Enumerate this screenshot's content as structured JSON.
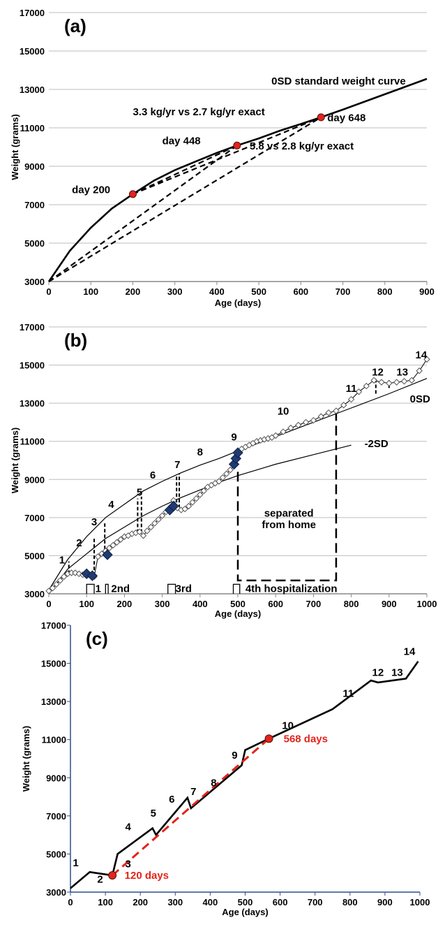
{
  "chart_data": [
    {
      "panel_label": "(a)",
      "type": "line",
      "xlabel": "Age (days)",
      "ylabel": "Weight (grams)",
      "xlim": [
        0,
        900
      ],
      "ylim": [
        3000,
        17000
      ],
      "xticks": [
        0,
        100,
        200,
        300,
        400,
        500,
        600,
        700,
        800,
        900
      ],
      "yticks": [
        3000,
        5000,
        7000,
        9000,
        11000,
        13000,
        15000,
        17000
      ],
      "grid": "horizontal",
      "series": [
        {
          "name": "0SD standard weight curve",
          "style": "solid",
          "x": [
            0,
            50,
            100,
            150,
            200,
            250,
            300,
            350,
            400,
            448,
            500,
            550,
            600,
            648,
            700,
            750,
            800,
            850,
            900
          ],
          "y": [
            3000,
            4600,
            5800,
            6800,
            7550,
            8250,
            8800,
            9250,
            9700,
            10080,
            10450,
            10850,
            11200,
            11550,
            11950,
            12350,
            12750,
            13150,
            13550
          ]
        },
        {
          "style": "dashed",
          "x": [
            0,
            448
          ],
          "y": [
            3000,
            10080
          ]
        },
        {
          "style": "dashed",
          "x": [
            0,
            648
          ],
          "y": [
            3000,
            11550
          ]
        },
        {
          "style": "dashed",
          "x": [
            200,
            448
          ],
          "y": [
            7550,
            10080
          ]
        },
        {
          "style": "dashed",
          "x": [
            200,
            648
          ],
          "y": [
            7550,
            11550
          ]
        }
      ],
      "points": [
        {
          "x": 200,
          "y": 7550,
          "color": "#e3241b"
        },
        {
          "x": 448,
          "y": 10080,
          "color": "#e3241b"
        },
        {
          "x": 648,
          "y": 11550,
          "color": "#e3241b"
        }
      ],
      "annotations": [
        {
          "text": "0SD standard weight curve",
          "x": 530,
          "y": 13250
        },
        {
          "text": "3.3 kg/yr vs 2.7 kg/yr exact",
          "x": 200,
          "y": 11650
        },
        {
          "text": "day 648",
          "x": 663,
          "y": 11350
        },
        {
          "text": "day 448",
          "x": 270,
          "y": 10150
        },
        {
          "text": "5.8 vs 2.8 kg/yr exact",
          "x": 478,
          "y": 9880
        },
        {
          "text": "day 200",
          "x": 55,
          "y": 7600
        }
      ]
    },
    {
      "panel_label": "(b)",
      "type": "scatter",
      "xlabel": "Age (days)",
      "ylabel": "Weight (grams)",
      "xlim": [
        0,
        1000
      ],
      "ylim": [
        3000,
        17000
      ],
      "xticks": [
        0,
        100,
        200,
        300,
        400,
        500,
        600,
        700,
        800,
        900,
        1000
      ],
      "yticks": [
        3000,
        5000,
        7000,
        9000,
        11000,
        13000,
        15000,
        17000
      ],
      "grid": "horizontal",
      "curves": [
        {
          "name": "0SD",
          "x": [
            0,
            50,
            100,
            150,
            200,
            250,
            300,
            350,
            400,
            450,
            500,
            600,
            700,
            800,
            900,
            1000
          ],
          "y": [
            3200,
            4800,
            6000,
            7000,
            7700,
            8400,
            8900,
            9350,
            9750,
            10100,
            10500,
            11250,
            12000,
            12750,
            13500,
            14300
          ]
        },
        {
          "name": "-2SD",
          "x": [
            0,
            50,
            100,
            150,
            200,
            250,
            300,
            350,
            400,
            450,
            500,
            600,
            700,
            800
          ],
          "y": [
            3000,
            4300,
            5100,
            5900,
            6500,
            7100,
            7600,
            8050,
            8450,
            8850,
            9200,
            9800,
            10300,
            10800
          ]
        }
      ],
      "weights": {
        "x": [
          0,
          10,
          20,
          30,
          40,
          50,
          60,
          70,
          80,
          90,
          100,
          110,
          120,
          130,
          140,
          150,
          160,
          170,
          180,
          190,
          200,
          210,
          220,
          230,
          240,
          250,
          260,
          270,
          280,
          290,
          300,
          310,
          320,
          330,
          340,
          350,
          360,
          370,
          380,
          390,
          400,
          410,
          420,
          430,
          440,
          450,
          460,
          470,
          480,
          490,
          500,
          510,
          520,
          530,
          540,
          550,
          560,
          570,
          580,
          590,
          600,
          620,
          640,
          660,
          680,
          700,
          720,
          740,
          760,
          780,
          800,
          820,
          840,
          860,
          880,
          900,
          920,
          940,
          960,
          980,
          1000
        ],
        "y": [
          3150,
          3300,
          3500,
          3700,
          3900,
          4050,
          4100,
          4100,
          4050,
          4000,
          4000,
          3950,
          3900,
          4950,
          5100,
          5250,
          5400,
          5550,
          5700,
          5850,
          6000,
          6050,
          6150,
          6200,
          6250,
          6050,
          6300,
          6500,
          6700,
          6900,
          7100,
          7300,
          7500,
          7900,
          7500,
          7400,
          7450,
          7600,
          7800,
          8000,
          8200,
          8400,
          8600,
          8700,
          8800,
          8900,
          9100,
          9300,
          9500,
          9700,
          10500,
          10600,
          10700,
          10800,
          10900,
          11000,
          11050,
          11100,
          11150,
          11200,
          11300,
          11500,
          11700,
          11850,
          12000,
          12100,
          12300,
          12500,
          12600,
          12900,
          13200,
          13600,
          13900,
          14200,
          14100,
          14050,
          14100,
          14150,
          14200,
          14700,
          15300
        ]
      },
      "hospital_diamonds": [
        {
          "x": 100,
          "y": 4050
        },
        {
          "x": 115,
          "y": 3950
        },
        {
          "x": 155,
          "y": 5050
        },
        {
          "x": 320,
          "y": 7400
        },
        {
          "x": 330,
          "y": 7600
        },
        {
          "x": 490,
          "y": 9800
        },
        {
          "x": 495,
          "y": 10100
        },
        {
          "x": 500,
          "y": 10400
        }
      ],
      "deficits": [
        {
          "x": 53,
          "y1": 4050,
          "y2": 4700
        },
        {
          "x": 120,
          "y1": 3950,
          "y2": 5900
        },
        {
          "x": 148,
          "y1": 5050,
          "y2": 6700
        },
        {
          "x": 235,
          "y1": 6200,
          "y2": 8000
        },
        {
          "x": 245,
          "y1": 6200,
          "y2": 8100
        },
        {
          "x": 338,
          "y1": 7500,
          "y2": 9200
        },
        {
          "x": 345,
          "y1": 7500,
          "y2": 9300
        },
        {
          "x": 865,
          "y1": 13500,
          "y2": 14300
        },
        {
          "x": 900,
          "y1": 13800,
          "y2": 14200
        }
      ],
      "number_labels": [
        {
          "text": "1",
          "x": 35,
          "y": 4600
        },
        {
          "text": "2",
          "x": 80,
          "y": 5500
        },
        {
          "text": "3",
          "x": 120,
          "y": 6600
        },
        {
          "text": "4",
          "x": 165,
          "y": 7500
        },
        {
          "text": "5",
          "x": 240,
          "y": 8150
        },
        {
          "text": "6",
          "x": 275,
          "y": 9050
        },
        {
          "text": "7",
          "x": 340,
          "y": 9600
        },
        {
          "text": "8",
          "x": 400,
          "y": 10250
        },
        {
          "text": "9",
          "x": 490,
          "y": 11050
        },
        {
          "text": "10",
          "x": 620,
          "y": 12400
        },
        {
          "text": "11",
          "x": 800,
          "y": 13600
        },
        {
          "text": "12",
          "x": 870,
          "y": 14450
        },
        {
          "text": "13",
          "x": 935,
          "y": 14450
        },
        {
          "text": "14",
          "x": 985,
          "y": 15350
        }
      ],
      "annotations": [
        {
          "text": "0SD",
          "x": 955,
          "y": 13050
        },
        {
          "text": "-2SD",
          "x": 835,
          "y": 10700
        },
        {
          "text": "separated",
          "x": 635,
          "y": 7050
        },
        {
          "text": "from home",
          "x": 635,
          "y": 6450
        },
        {
          "text": "1",
          "x": 123,
          "y": 3100
        },
        {
          "text": "2nd",
          "x": 165,
          "y": 3100
        },
        {
          "text": "3rd",
          "x": 335,
          "y": 3100
        },
        {
          "text": "4th hospitalization",
          "x": 520,
          "y": 3100
        }
      ],
      "separated_box": {
        "x": [
          500,
          760
        ],
        "y": [
          3700,
          12500
        ]
      },
      "hospitalizations": [
        {
          "x": [
            100,
            120
          ]
        },
        {
          "x": [
            150,
            157
          ]
        },
        {
          "x": [
            315,
            335
          ]
        },
        {
          "x": [
            488,
            505
          ]
        }
      ]
    },
    {
      "panel_label": "(c)",
      "type": "line",
      "xlabel": "Age (days)",
      "ylabel": "Weight (grams)",
      "xlim": [
        0,
        1000
      ],
      "ylim": [
        3000,
        17000
      ],
      "xticks": [
        0,
        100,
        200,
        300,
        400,
        500,
        600,
        700,
        800,
        900,
        1000
      ],
      "yticks": [
        3000,
        5000,
        7000,
        9000,
        11000,
        13000,
        15000,
        17000
      ],
      "grid": "none",
      "series": [
        {
          "style": "solid",
          "color": "#000000",
          "x": [
            0,
            55,
            120,
            135,
            235,
            245,
            335,
            345,
            490,
            500,
            568,
            750,
            860,
            880,
            960,
            995
          ],
          "y": [
            3200,
            4050,
            3880,
            5000,
            6350,
            6000,
            7950,
            7400,
            9650,
            10450,
            11050,
            12600,
            14100,
            14000,
            14200,
            15100
          ]
        },
        {
          "style": "dashed",
          "color": "#e3241b",
          "x": [
            120,
            568
          ],
          "y": [
            3880,
            11050
          ]
        }
      ],
      "points": [
        {
          "x": 120,
          "y": 3880,
          "color": "#e3241b"
        },
        {
          "x": 568,
          "y": 11050,
          "color": "#e3241b"
        }
      ],
      "number_labels": [
        {
          "text": "1",
          "x": 15,
          "y": 4350
        },
        {
          "text": "2",
          "x": 85,
          "y": 3500
        },
        {
          "text": "3",
          "x": 165,
          "y": 4300
        },
        {
          "text": "4",
          "x": 165,
          "y": 6250
        },
        {
          "text": "5",
          "x": 237,
          "y": 6950
        },
        {
          "text": "6",
          "x": 290,
          "y": 7700
        },
        {
          "text": "7",
          "x": 352,
          "y": 8100
        },
        {
          "text": "8",
          "x": 410,
          "y": 8550
        },
        {
          "text": "9",
          "x": 470,
          "y": 10000
        },
        {
          "text": "10",
          "x": 622,
          "y": 11550
        },
        {
          "text": "11",
          "x": 795,
          "y": 13250
        },
        {
          "text": "12",
          "x": 880,
          "y": 14350
        },
        {
          "text": "13",
          "x": 935,
          "y": 14350
        },
        {
          "text": "14",
          "x": 970,
          "y": 15450
        }
      ],
      "annotations": [
        {
          "text": "120 days",
          "x": 155,
          "y": 3880,
          "color": "#e3241b"
        },
        {
          "text": "568 days",
          "x": 610,
          "y": 11050,
          "color": "#e3241b"
        }
      ]
    }
  ]
}
